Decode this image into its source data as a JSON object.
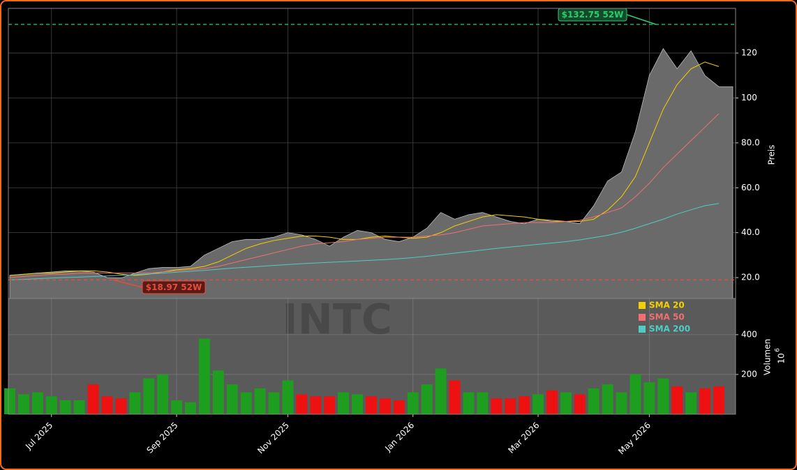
{
  "chart_data": {
    "type": "stock",
    "watermark": "INTC",
    "y_label": "Preis",
    "volume_label": "Volumen",
    "volume_scale": {
      "base": "10",
      "exponent": "6"
    },
    "categories": [
      null,
      null,
      null,
      "Jul 2025",
      null,
      null,
      null,
      null,
      null,
      null,
      null,
      null,
      "Sep 2025",
      null,
      null,
      null,
      null,
      null,
      null,
      null,
      "Nov 2025",
      null,
      null,
      null,
      null,
      null,
      null,
      null,
      null,
      "Jan 2026",
      null,
      null,
      null,
      null,
      null,
      null,
      null,
      null,
      "Mar 2026",
      null,
      null,
      null,
      null,
      null,
      null,
      null,
      "May 2026",
      null,
      null,
      null,
      null,
      null
    ],
    "close": [
      21,
      21.5,
      22,
      22.5,
      23,
      23,
      22.5,
      20,
      19.8,
      22,
      24,
      24.5,
      24.5,
      25,
      30,
      33,
      36,
      37,
      37,
      38,
      40,
      39,
      37,
      34,
      38,
      41,
      40,
      37,
      36,
      38,
      42,
      49,
      46,
      48,
      49,
      47,
      45,
      44,
      46,
      45,
      45,
      44,
      52,
      63,
      67,
      85,
      110,
      122,
      113,
      121,
      110,
      105
    ],
    "area_color": "#6a6a6a",
    "sma": [
      {
        "name": "SMA 20",
        "color": "#f5d000",
        "values": [
          21,
          21.5,
          22,
          22,
          22.5,
          23,
          23,
          22.5,
          21.5,
          21,
          21.5,
          22.5,
          23.5,
          24,
          25,
          27,
          30,
          33,
          35,
          36.5,
          37.5,
          38.5,
          38.5,
          38,
          37,
          37,
          38,
          38.5,
          38,
          37.5,
          38,
          40,
          43,
          45,
          47,
          48,
          47.5,
          47,
          46,
          45.5,
          45,
          45,
          46,
          50,
          56,
          65,
          80,
          95,
          106,
          113,
          116,
          114
        ]
      },
      {
        "name": "SMA 50",
        "color": "#f07070",
        "values": [
          20,
          20.5,
          21,
          21.5,
          21.5,
          22,
          22,
          22,
          22,
          22,
          22,
          22.5,
          23,
          23.5,
          24,
          25,
          26.5,
          28,
          29.5,
          31,
          32.5,
          34,
          35,
          35.5,
          36,
          37,
          37.5,
          38,
          38,
          38,
          38.5,
          39,
          40,
          41.5,
          43,
          43.5,
          44,
          44.5,
          44.5,
          44.5,
          45,
          45.5,
          47,
          49,
          51,
          56,
          62,
          69,
          75,
          81,
          87,
          93
        ]
      },
      {
        "name": "SMA 200",
        "color": "#4ecdc4",
        "values": [
          19,
          19.2,
          19.5,
          19.8,
          20,
          20.2,
          20.5,
          20.7,
          21,
          21.3,
          21.6,
          22,
          22.4,
          22.8,
          23.2,
          23.7,
          24.2,
          24.6,
          25,
          25.4,
          25.8,
          26.2,
          26.5,
          26.8,
          27.1,
          27.4,
          27.7,
          28,
          28.4,
          28.9,
          29.5,
          30.2,
          30.9,
          31.6,
          32.3,
          33,
          33.6,
          34.2,
          34.8,
          35.4,
          36,
          36.8,
          37.8,
          38.8,
          40.2,
          42,
          44,
          46,
          48.3,
          50.2,
          52,
          53
        ]
      }
    ],
    "volume": [
      130,
      100,
      110,
      90,
      70,
      70,
      150,
      90,
      80,
      110,
      180,
      200,
      70,
      60,
      380,
      220,
      150,
      110,
      130,
      110,
      170,
      100,
      90,
      90,
      110,
      100,
      90,
      80,
      70,
      110,
      150,
      230,
      170,
      110,
      110,
      80,
      80,
      90,
      100,
      120,
      110,
      100,
      130,
      150,
      110,
      200,
      160,
      180,
      140,
      110,
      130,
      140
    ],
    "up_color": "#1e9e1e",
    "down_color": "#ee1111",
    "annotations": [
      {
        "label": "$132.75 52W",
        "value": 132.75,
        "color": "#2ecc71"
      },
      {
        "label": "$18.97 52W",
        "value": 18.97,
        "color": "#e74c3c"
      }
    ],
    "ylim": [
      10.7,
      139.9
    ],
    "yticks": [
      {
        "value": 20,
        "label": "20.0"
      },
      {
        "value": 40,
        "label": "40.0"
      },
      {
        "value": 60,
        "label": "60.0"
      },
      {
        "value": 80,
        "label": "80.0"
      },
      100,
      120
    ],
    "volume_ylim": [
      0,
      582
    ],
    "volume_yticks": [
      200,
      400
    ],
    "grid": true
  }
}
